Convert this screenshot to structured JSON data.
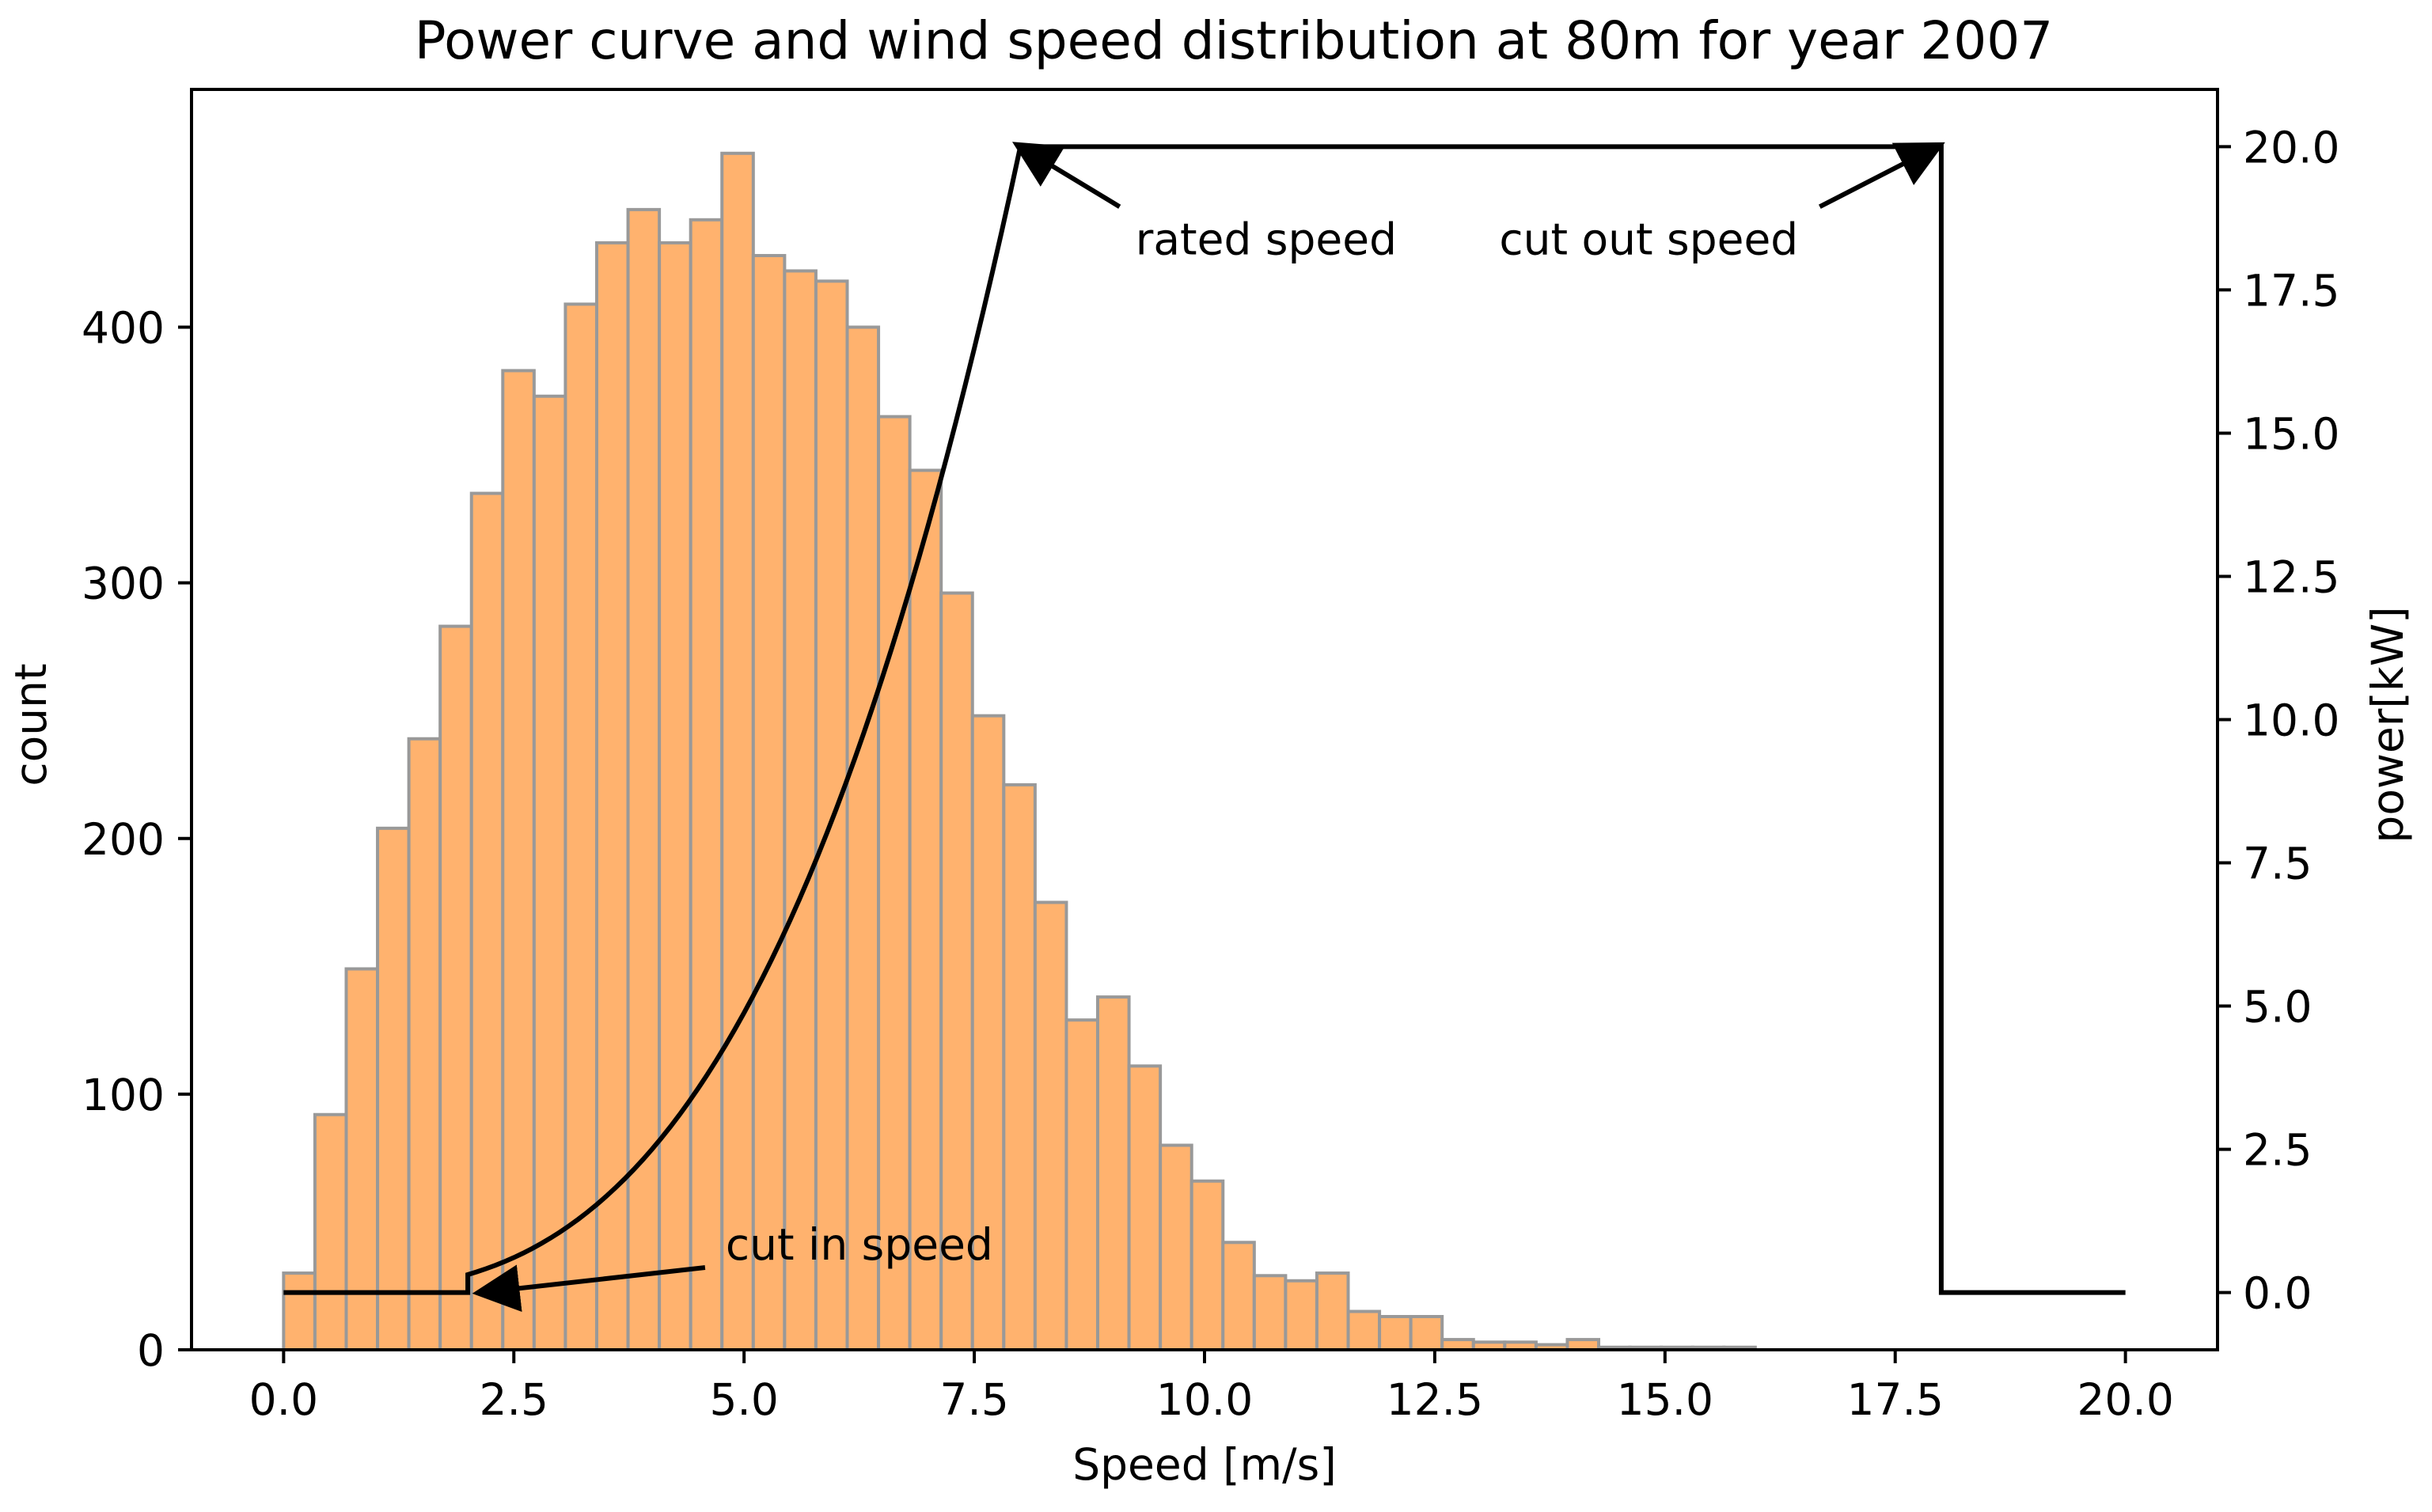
{
  "chart_data": {
    "type": "bar",
    "title": "Power curve and wind speed distribution at 80m for year 2007",
    "xlabel": "Speed [m/s]",
    "ylabel": "count",
    "y2label": "power[kW]",
    "xlim": [
      -1.0,
      21.0
    ],
    "ylim": [
      0,
      493
    ],
    "y2lim": [
      -1.0,
      21.0
    ],
    "x_ticks": [
      0.0,
      2.5,
      5.0,
      7.5,
      10.0,
      12.5,
      15.0,
      17.5,
      20.0
    ],
    "x_tick_labels": [
      "0.0",
      "2.5",
      "5.0",
      "7.5",
      "10.0",
      "12.5",
      "15.0",
      "17.5",
      "20.0"
    ],
    "y_ticks": [
      0,
      100,
      200,
      300,
      400
    ],
    "y_tick_labels": [
      "0",
      "100",
      "200",
      "300",
      "400"
    ],
    "y2_ticks": [
      0.0,
      2.5,
      5.0,
      7.5,
      10.0,
      12.5,
      15.0,
      17.5,
      20.0
    ],
    "y2_tick_labels": [
      "0.0",
      "2.5",
      "5.0",
      "7.5",
      "10.0",
      "12.5",
      "15.0",
      "17.5",
      "20.0"
    ],
    "histogram": {
      "name": "wind speed distribution",
      "bin_width": 0.34,
      "bin_start": 0.0,
      "values": [
        30,
        92,
        149,
        204,
        239,
        283,
        335,
        383,
        373,
        409,
        433,
        446,
        433,
        442,
        468,
        428,
        422,
        418,
        400,
        365,
        344,
        296,
        248,
        221,
        175,
        129,
        138,
        111,
        80,
        66,
        42,
        29,
        27,
        30,
        15,
        13,
        13,
        4,
        3,
        3,
        2,
        4,
        1,
        1,
        1,
        1,
        1,
        0,
        0,
        0,
        0,
        0,
        0,
        0,
        0,
        0,
        0,
        0,
        0
      ],
      "color": "#FFB26E",
      "edgecolor": "#999999"
    },
    "power_curve": {
      "name": "power curve",
      "cut_in_speed": 2.0,
      "rated_speed": 8.0,
      "cut_out_speed": 18.0,
      "rated_power": 20.0,
      "x_max": 20.0,
      "color": "#000000"
    },
    "annotations": [
      {
        "text": "cut in speed",
        "text_x": 4.8,
        "text_y2": 0.85,
        "arrow_x": 2.15,
        "arrow_y2": 0.0
      },
      {
        "text": "rated speed",
        "text_x": 9.25,
        "text_y2": 18.4,
        "arrow_x": 8.0,
        "arrow_y2": 20.0
      },
      {
        "text": "cut out speed",
        "text_x": 13.2,
        "text_y2": 18.4,
        "arrow_x": 17.95,
        "arrow_y2": 20.0
      }
    ]
  }
}
